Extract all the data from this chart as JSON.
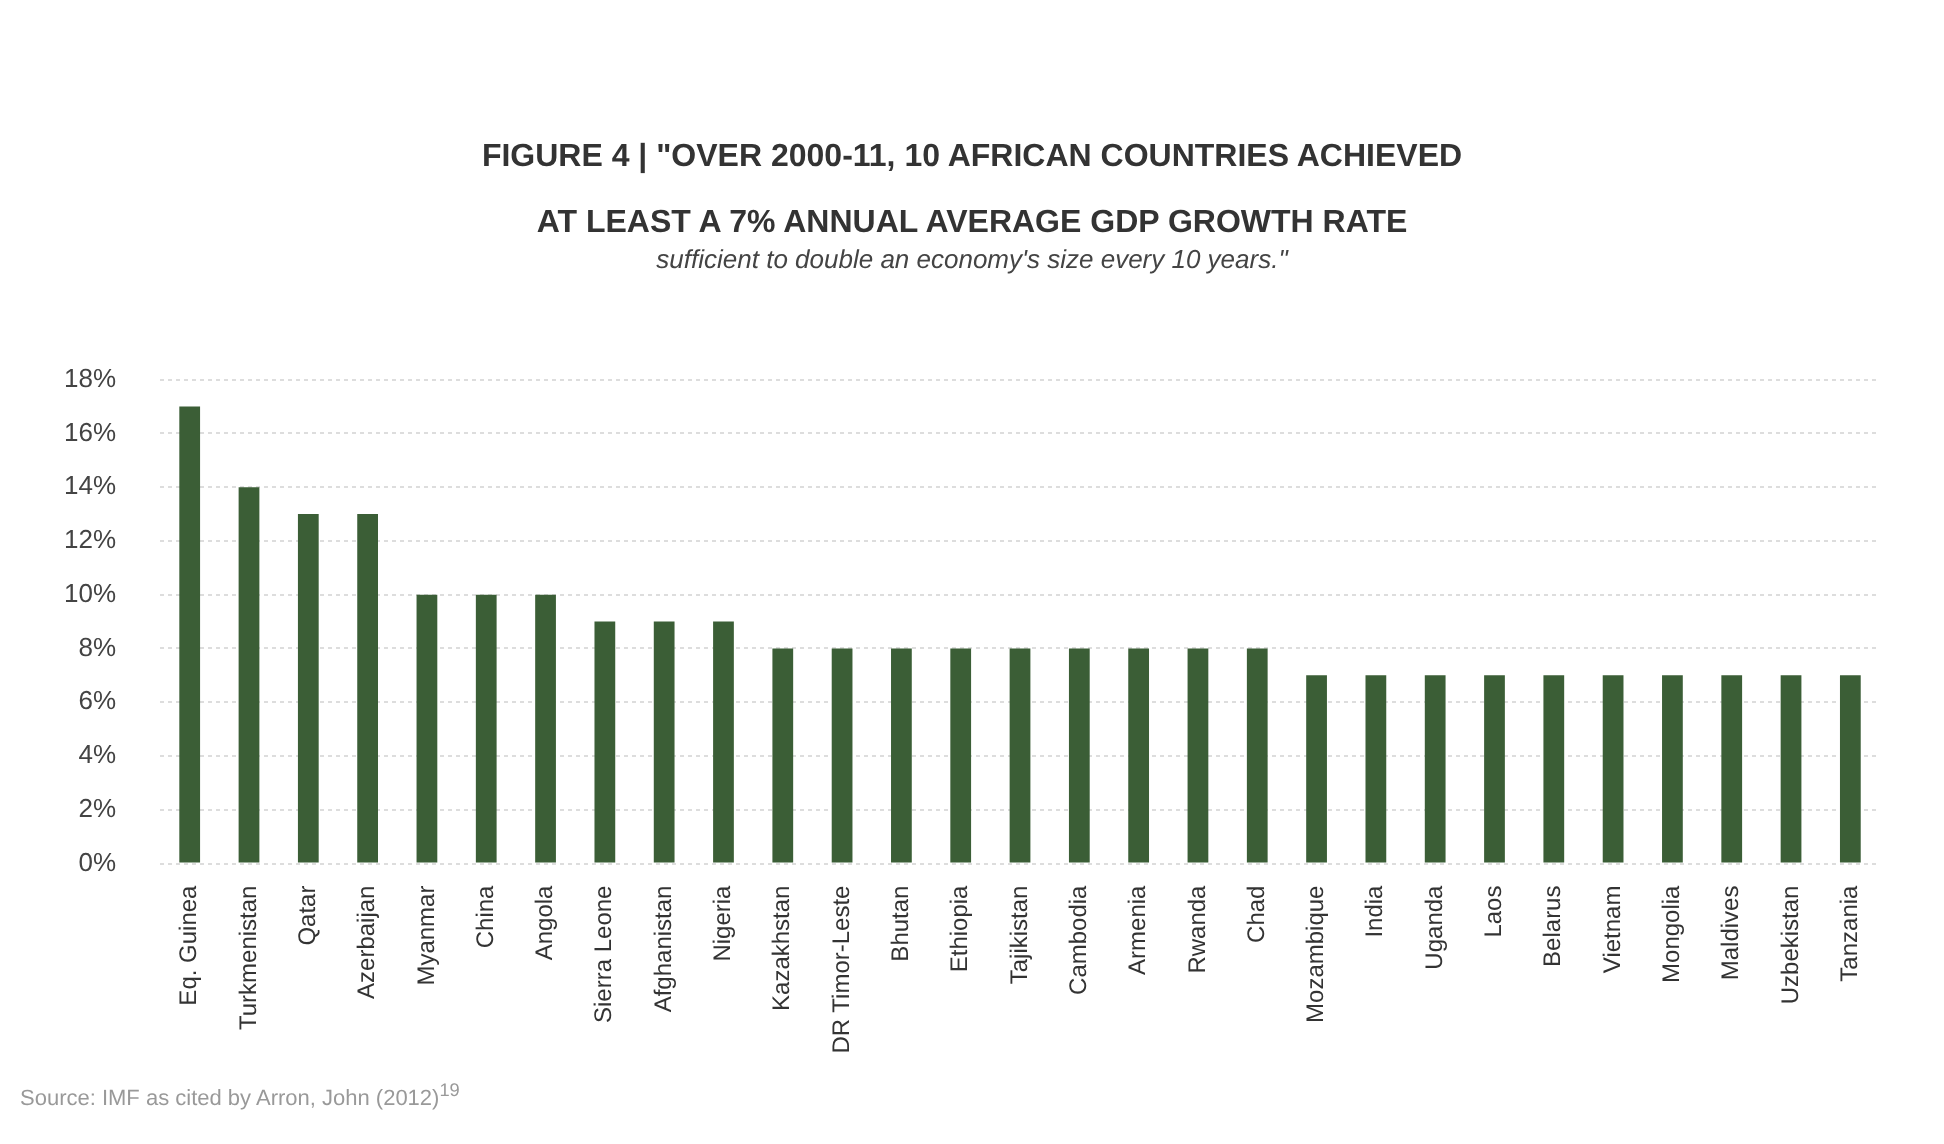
{
  "chart_data": {
    "type": "bar",
    "title": "FIGURE 4  |  \"OVER 2000-11, 10 AFRICAN COUNTRIES ACHIEVED AT LEAST A 7% ANNUAL AVERAGE GDP GROWTH RATE",
    "subtitle": "sufficient to double an economy's size every 10 years.\"",
    "categories": [
      "Eq. Guinea",
      "Turkmenistan",
      "Qatar",
      "Azerbaijan",
      "Myanmar",
      "China",
      "Angola",
      "Sierra Leone",
      "Afghanistan",
      "Nigeria",
      "Kazakhstan",
      "DR Timor-Leste",
      "Bhutan",
      "Ethiopia",
      "Tajikistan",
      "Cambodia",
      "Armenia",
      "Rwanda",
      "Chad",
      "Mozambique",
      "India",
      "Uganda",
      "Laos",
      "Belarus",
      "Vietnam",
      "Mongolia",
      "Maldives",
      "Uzbekistan",
      "Tanzania"
    ],
    "values": [
      17,
      14,
      13,
      13,
      10,
      10,
      10,
      9,
      9,
      9,
      8,
      8,
      8,
      8,
      8,
      8,
      8,
      8,
      8,
      7,
      7,
      7,
      7,
      7,
      7,
      7,
      7,
      7,
      7
    ],
    "color": "#3b5e36",
    "ylim": [
      0,
      18
    ],
    "yticks": [
      {
        "value": 0,
        "label": "0%"
      },
      {
        "value": 2,
        "label": "2%"
      },
      {
        "value": 4,
        "label": "4%"
      },
      {
        "value": 6,
        "label": "6%"
      },
      {
        "value": 8,
        "label": "8%"
      },
      {
        "value": 10,
        "label": "10%"
      },
      {
        "value": 12,
        "label": "12%"
      },
      {
        "value": 14,
        "label": "14%"
      },
      {
        "value": 16,
        "label": "16%"
      },
      {
        "value": 18,
        "label": "18%"
      }
    ],
    "grid": "y",
    "annotations": [
      "Source: IMF as cited by Arron, John (2012)$^{19}$"
    ]
  }
}
